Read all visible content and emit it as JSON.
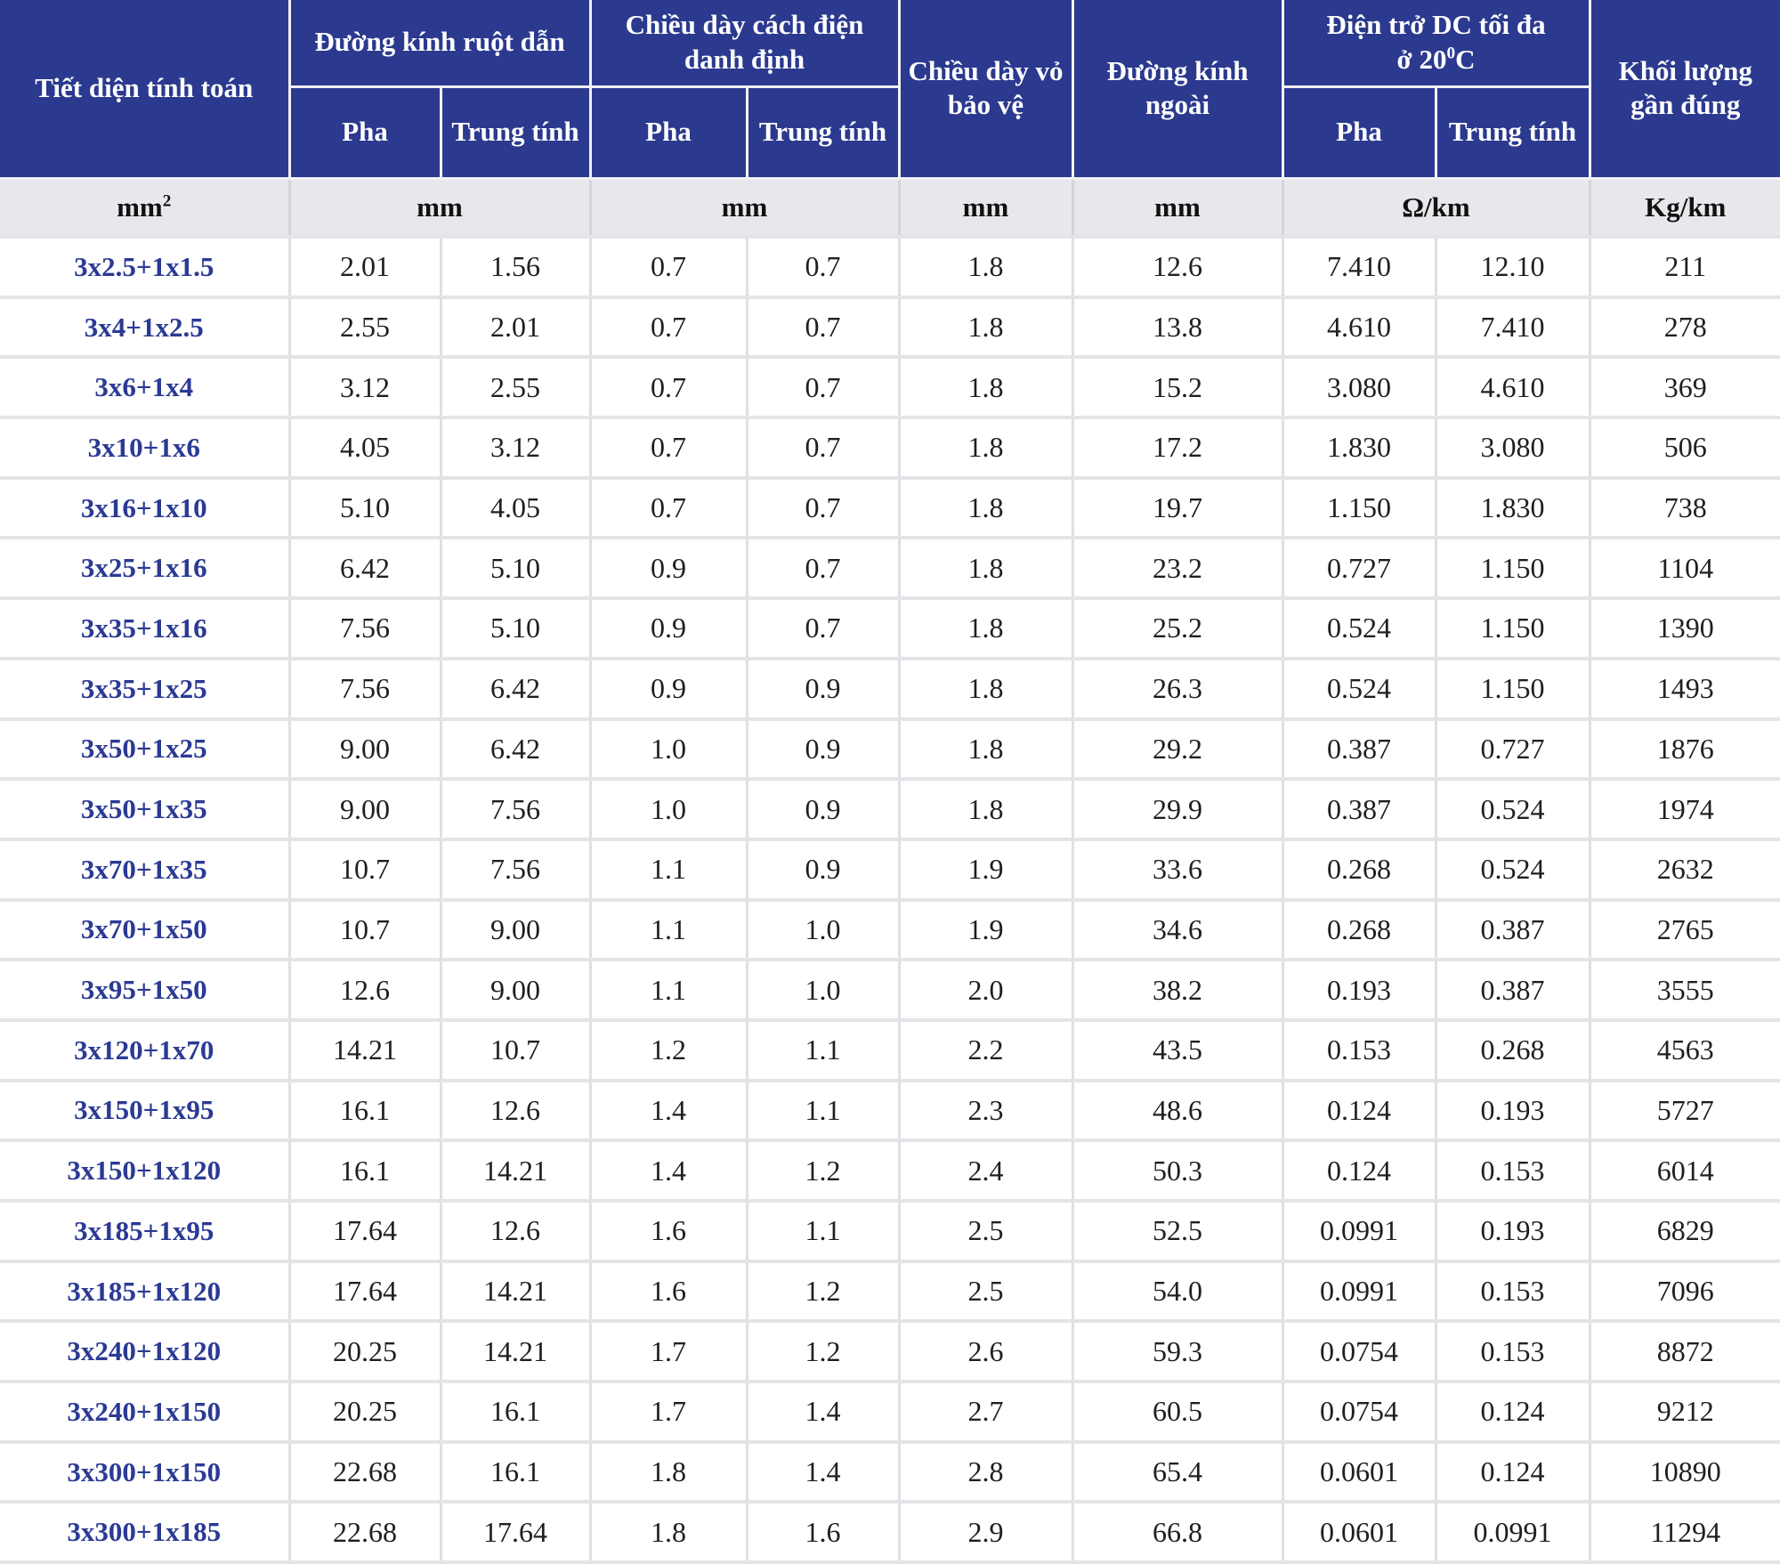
{
  "table": {
    "header": {
      "tiet_dien": "Tiết diện tính toán",
      "grp_ruot_dan": "Đường kính ruột dẫn",
      "grp_cach_dien": "Chiều dày cách điện danh định",
      "vo_bao_ve": "Chiều dày vỏ bảo vệ",
      "duong_kinh_ngoai": "Đường kính ngoài",
      "grp_dien_tro_line1": "Điện trở DC tối đa",
      "grp_dien_tro_line2_pre": "ở 20",
      "grp_dien_tro_sup": "0",
      "grp_dien_tro_line2_suf": "C",
      "khoi_luong": "Khối lượng gần đúng",
      "sub_pha": "Pha",
      "sub_trung_tinh": "Trung tính"
    },
    "units": {
      "tiet_dien_base": "mm",
      "tiet_dien_sup": "2",
      "ruot_dan": "mm",
      "cach_dien": "mm",
      "vo_bao_ve": "mm",
      "duong_kinh_ngoai": "mm",
      "dien_tro": "Ω/km",
      "khoi_luong": "Kg/km"
    },
    "rows": [
      [
        "3x2.5+1x1.5",
        "2.01",
        "1.56",
        "0.7",
        "0.7",
        "1.8",
        "12.6",
        "7.410",
        "12.10",
        "211"
      ],
      [
        "3x4+1x2.5",
        "2.55",
        "2.01",
        "0.7",
        "0.7",
        "1.8",
        "13.8",
        "4.610",
        "7.410",
        "278"
      ],
      [
        "3x6+1x4",
        "3.12",
        "2.55",
        "0.7",
        "0.7",
        "1.8",
        "15.2",
        "3.080",
        "4.610",
        "369"
      ],
      [
        "3x10+1x6",
        "4.05",
        "3.12",
        "0.7",
        "0.7",
        "1.8",
        "17.2",
        "1.830",
        "3.080",
        "506"
      ],
      [
        "3x16+1x10",
        "5.10",
        "4.05",
        "0.7",
        "0.7",
        "1.8",
        "19.7",
        "1.150",
        "1.830",
        "738"
      ],
      [
        "3x25+1x16",
        "6.42",
        "5.10",
        "0.9",
        "0.7",
        "1.8",
        "23.2",
        "0.727",
        "1.150",
        "1104"
      ],
      [
        "3x35+1x16",
        "7.56",
        "5.10",
        "0.9",
        "0.7",
        "1.8",
        "25.2",
        "0.524",
        "1.150",
        "1390"
      ],
      [
        "3x35+1x25",
        "7.56",
        "6.42",
        "0.9",
        "0.9",
        "1.8",
        "26.3",
        "0.524",
        "1.150",
        "1493"
      ],
      [
        "3x50+1x25",
        "9.00",
        "6.42",
        "1.0",
        "0.9",
        "1.8",
        "29.2",
        "0.387",
        "0.727",
        "1876"
      ],
      [
        "3x50+1x35",
        "9.00",
        "7.56",
        "1.0",
        "0.9",
        "1.8",
        "29.9",
        "0.387",
        "0.524",
        "1974"
      ],
      [
        "3x70+1x35",
        "10.7",
        "7.56",
        "1.1",
        "0.9",
        "1.9",
        "33.6",
        "0.268",
        "0.524",
        "2632"
      ],
      [
        "3x70+1x50",
        "10.7",
        "9.00",
        "1.1",
        "1.0",
        "1.9",
        "34.6",
        "0.268",
        "0.387",
        "2765"
      ],
      [
        "3x95+1x50",
        "12.6",
        "9.00",
        "1.1",
        "1.0",
        "2.0",
        "38.2",
        "0.193",
        "0.387",
        "3555"
      ],
      [
        "3x120+1x70",
        "14.21",
        "10.7",
        "1.2",
        "1.1",
        "2.2",
        "43.5",
        "0.153",
        "0.268",
        "4563"
      ],
      [
        "3x150+1x95",
        "16.1",
        "12.6",
        "1.4",
        "1.1",
        "2.3",
        "48.6",
        "0.124",
        "0.193",
        "5727"
      ],
      [
        "3x150+1x120",
        "16.1",
        "14.21",
        "1.4",
        "1.2",
        "2.4",
        "50.3",
        "0.124",
        "0.153",
        "6014"
      ],
      [
        "3x185+1x95",
        "17.64",
        "12.6",
        "1.6",
        "1.1",
        "2.5",
        "52.5",
        "0.0991",
        "0.193",
        "6829"
      ],
      [
        "3x185+1x120",
        "17.64",
        "14.21",
        "1.6",
        "1.2",
        "2.5",
        "54.0",
        "0.0991",
        "0.153",
        "7096"
      ],
      [
        "3x240+1x120",
        "20.25",
        "14.21",
        "1.7",
        "1.2",
        "2.6",
        "59.3",
        "0.0754",
        "0.153",
        "8872"
      ],
      [
        "3x240+1x150",
        "20.25",
        "16.1",
        "1.7",
        "1.4",
        "2.7",
        "60.5",
        "0.0754",
        "0.124",
        "9212"
      ],
      [
        "3x300+1x150",
        "22.68",
        "16.1",
        "1.8",
        "1.4",
        "2.8",
        "65.4",
        "0.0601",
        "0.124",
        "10890"
      ],
      [
        "3x300+1x185",
        "22.68",
        "17.64",
        "1.8",
        "1.6",
        "2.9",
        "66.8",
        "0.0601",
        "0.0991",
        "11294"
      ]
    ]
  },
  "colors": {
    "header_bg": "#2b3a8e",
    "header_text": "#ffffff",
    "units_bg": "#e8e8ec",
    "row_label_text": "#2b3a94",
    "cell_text": "#1f1f1f",
    "grid_line": "#dfdfe4"
  }
}
